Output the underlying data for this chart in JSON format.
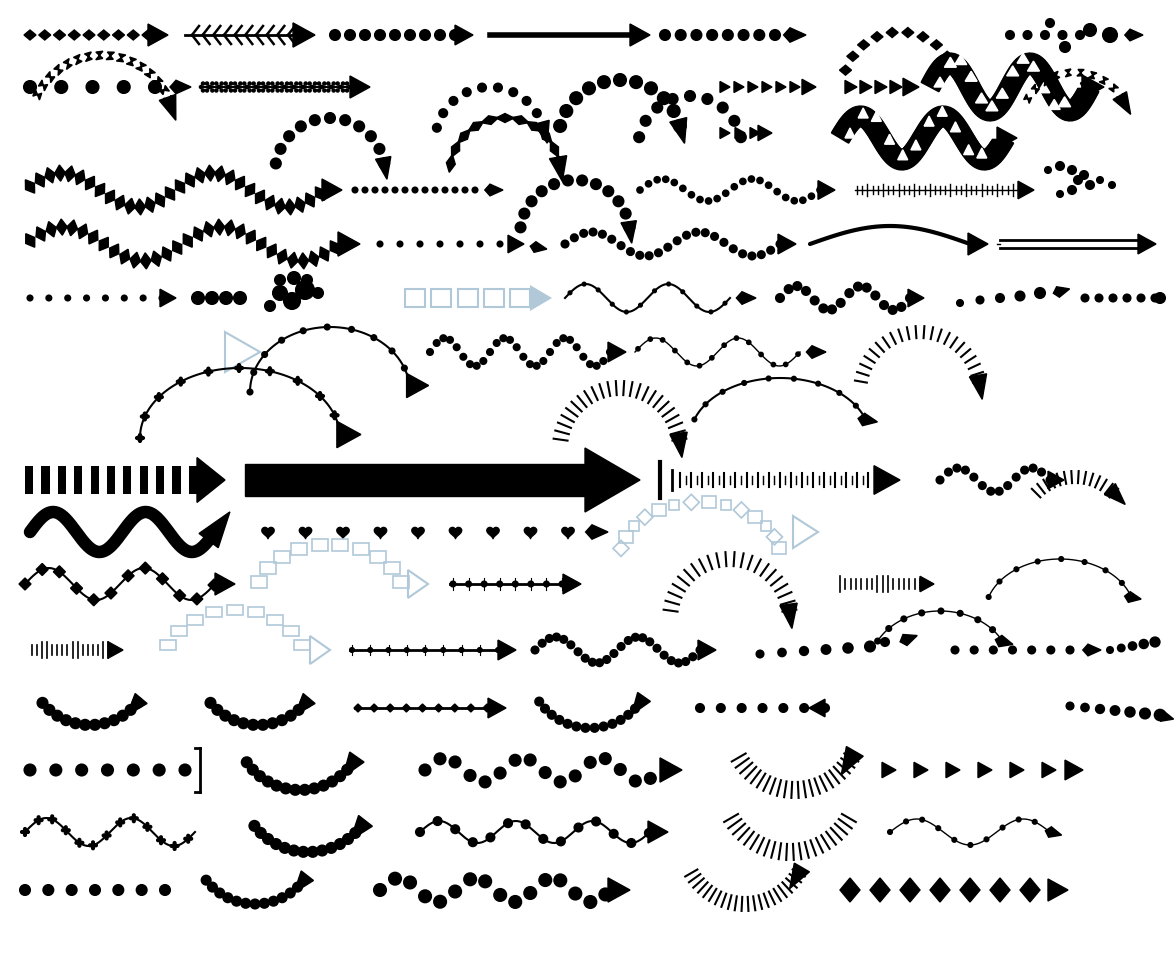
{
  "background_color": "#ffffff",
  "arrow_color": "#000000",
  "light_color": "#b0c8d8",
  "figsize": [
    11.76,
    9.8
  ],
  "dpi": 100
}
